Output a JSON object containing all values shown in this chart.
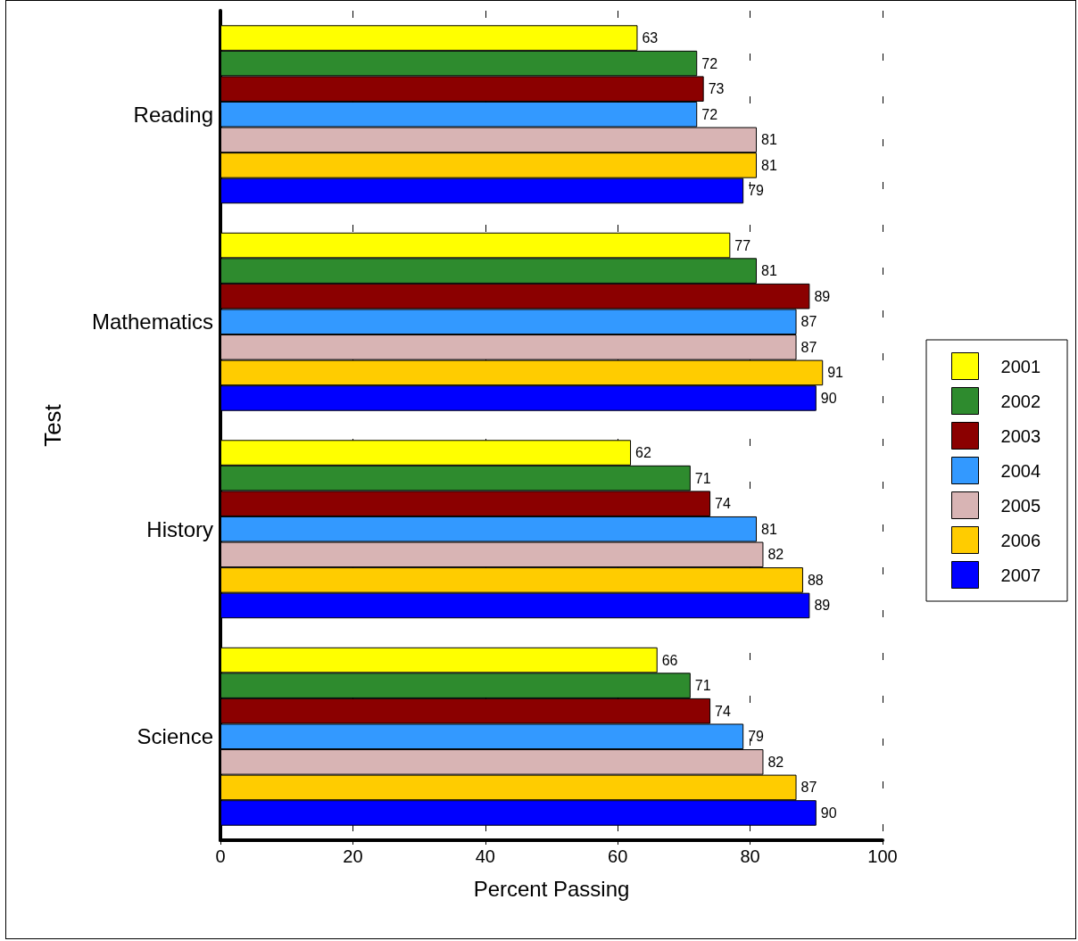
{
  "chart_data": {
    "type": "bar",
    "orientation": "horizontal",
    "xlabel": "Percent Passing",
    "ylabel": "Test",
    "categories": [
      "Reading",
      "Mathematics",
      "History",
      "Science"
    ],
    "series": [
      {
        "name": "2001",
        "color": "#ffff00",
        "values": [
          63,
          77,
          62,
          66
        ]
      },
      {
        "name": "2002",
        "color": "#2e8b2e",
        "values": [
          72,
          81,
          71,
          71
        ]
      },
      {
        "name": "2003",
        "color": "#8b0000",
        "values": [
          73,
          89,
          74,
          74
        ]
      },
      {
        "name": "2004",
        "color": "#3399ff",
        "values": [
          72,
          87,
          81,
          79
        ]
      },
      {
        "name": "2005",
        "color": "#d8b4b4",
        "values": [
          81,
          87,
          82,
          82
        ]
      },
      {
        "name": "2006",
        "color": "#ffcc00",
        "values": [
          81,
          91,
          88,
          87
        ]
      },
      {
        "name": "2007",
        "color": "#0000ff",
        "values": [
          79,
          90,
          89,
          90
        ]
      }
    ],
    "xlim": [
      0,
      100
    ],
    "xticks": [
      0,
      20,
      40,
      60,
      80,
      100
    ],
    "grid": "x",
    "legend": "right",
    "data_labels": true
  }
}
